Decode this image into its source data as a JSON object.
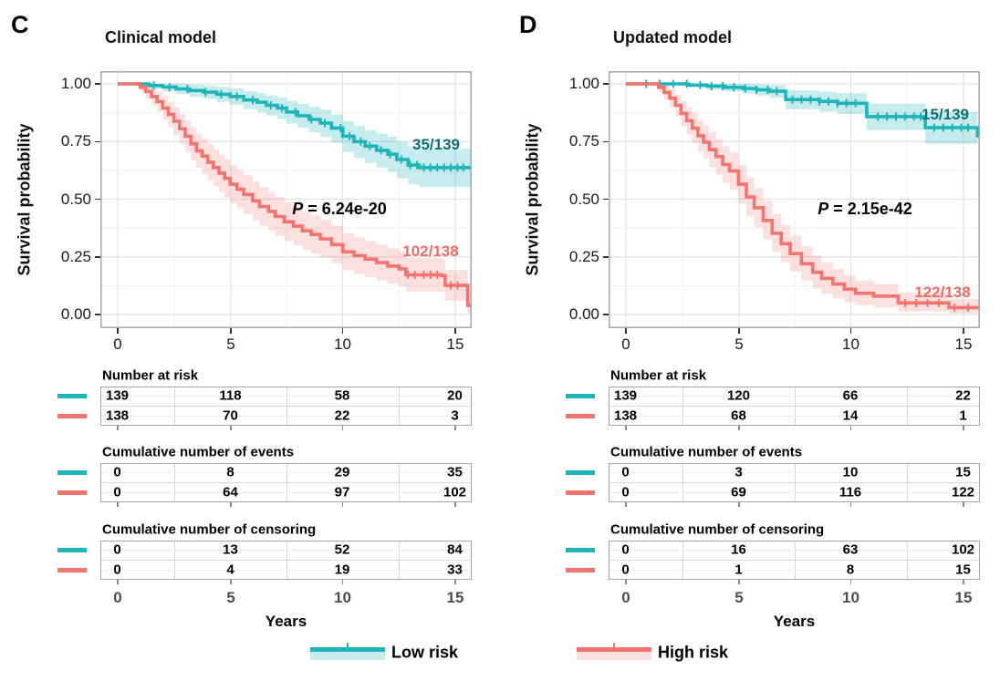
{
  "colors": {
    "low": "#1FB4B8",
    "low_fill": "rgba(31,180,184,0.25)",
    "low_text": "#0B6F75",
    "high": "#F3736E",
    "high_fill": "rgba(243,115,110,0.22)",
    "high_text": "#EF6A64",
    "grid_major": "#e2e2e2",
    "grid_minor": "#efefef",
    "panel_border": "#a6a6a6",
    "axis_text": "#1a1a1a",
    "table_axis_text": "#4d4d4d"
  },
  "axis": {
    "ylabel": "Survival probability",
    "y_ticks": [
      "1.00",
      "0.75",
      "0.50",
      "0.25",
      "0.00"
    ],
    "x_ticks": [
      "0",
      "5",
      "10",
      "15"
    ],
    "xlabel": "Years",
    "x_range": [
      0,
      15
    ],
    "y_range": [
      0.0,
      1.0
    ],
    "grid": "on"
  },
  "legend": [
    {
      "key": "low",
      "label": "Low risk"
    },
    {
      "key": "high",
      "label": "High risk"
    }
  ],
  "chart_data": {
    "type": "line",
    "subtype": "kaplan-meier-survival",
    "panels": [
      {
        "letter": "C",
        "title": "Clinical model",
        "pvalue": "P = 6.24e-20",
        "series": [
          {
            "key": "low",
            "name": "Low risk",
            "annotation": "35/139",
            "steps": [
              [
                0,
                1,
                1,
                1
              ],
              [
                1.1,
                1,
                1,
                1
              ],
              [
                1.4,
                0.993,
                0.98,
                1
              ],
              [
                2,
                0.986,
                0.966,
                1
              ],
              [
                2.6,
                0.978,
                0.955,
                1
              ],
              [
                3.2,
                0.971,
                0.944,
                0.997
              ],
              [
                3.8,
                0.964,
                0.934,
                0.993
              ],
              [
                4.4,
                0.955,
                0.922,
                0.987
              ],
              [
                5,
                0.945,
                0.908,
                0.98
              ],
              [
                5.6,
                0.93,
                0.89,
                0.968
              ],
              [
                6.2,
                0.92,
                0.877,
                0.96
              ],
              [
                6.6,
                0.907,
                0.862,
                0.95
              ],
              [
                7.1,
                0.895,
                0.848,
                0.94
              ],
              [
                7.5,
                0.878,
                0.828,
                0.927
              ],
              [
                8,
                0.862,
                0.81,
                0.914
              ],
              [
                8.5,
                0.846,
                0.79,
                0.9
              ],
              [
                9,
                0.83,
                0.77,
                0.888
              ],
              [
                9.5,
                0.808,
                0.745,
                0.868
              ],
              [
                10,
                0.773,
                0.705,
                0.838
              ],
              [
                10.5,
                0.75,
                0.68,
                0.818
              ],
              [
                11,
                0.73,
                0.657,
                0.8
              ],
              [
                11.5,
                0.712,
                0.637,
                0.784
              ],
              [
                12,
                0.695,
                0.618,
                0.77
              ],
              [
                12.4,
                0.672,
                0.592,
                0.75
              ],
              [
                12.9,
                0.648,
                0.565,
                0.728
              ],
              [
                13.4,
                0.637,
                0.552,
                0.718
              ],
              [
                15.68,
                0.637,
                0.552,
                0.718
              ]
            ],
            "censors": [
              1.6,
              2.3,
              3.1,
              3.9,
              4.6,
              5.3,
              6.0,
              6.8,
              7.3,
              7.9,
              8.6,
              9.2,
              9.9,
              10.3,
              10.8,
              11.2,
              11.7,
              12.1,
              12.6,
              13.0,
              13.3,
              13.6,
              13.9,
              14.2,
              14.5,
              14.8,
              15.1,
              15.35
            ]
          },
          {
            "key": "high",
            "name": "High risk",
            "annotation": "102/138",
            "steps": [
              [
                0,
                1,
                1,
                1
              ],
              [
                0.8,
                1,
                1,
                1
              ],
              [
                1,
                0.985,
                0.965,
                1
              ],
              [
                1.25,
                0.967,
                0.937,
                0.997
              ],
              [
                1.5,
                0.945,
                0.907,
                0.983
              ],
              [
                1.75,
                0.923,
                0.88,
                0.966
              ],
              [
                2,
                0.895,
                0.845,
                0.947
              ],
              [
                2.25,
                0.867,
                0.812,
                0.922
              ],
              [
                2.5,
                0.838,
                0.778,
                0.898
              ],
              [
                2.75,
                0.805,
                0.74,
                0.87
              ],
              [
                3,
                0.773,
                0.705,
                0.841
              ],
              [
                3.25,
                0.74,
                0.668,
                0.812
              ],
              [
                3.5,
                0.71,
                0.635,
                0.785
              ],
              [
                3.75,
                0.687,
                0.61,
                0.764
              ],
              [
                4,
                0.66,
                0.582,
                0.738
              ],
              [
                4.25,
                0.637,
                0.557,
                0.717
              ],
              [
                4.5,
                0.613,
                0.532,
                0.694
              ],
              [
                4.75,
                0.59,
                0.508,
                0.672
              ],
              [
                5,
                0.565,
                0.482,
                0.648
              ],
              [
                5.3,
                0.543,
                0.46,
                0.626
              ],
              [
                5.6,
                0.52,
                0.437,
                0.603
              ],
              [
                6,
                0.492,
                0.408,
                0.576
              ],
              [
                6.3,
                0.468,
                0.384,
                0.552
              ],
              [
                6.7,
                0.447,
                0.363,
                0.531
              ],
              [
                7,
                0.425,
                0.341,
                0.509
              ],
              [
                7.4,
                0.402,
                0.318,
                0.486
              ],
              [
                7.8,
                0.383,
                0.3,
                0.466
              ],
              [
                8.2,
                0.363,
                0.28,
                0.446
              ],
              [
                8.6,
                0.347,
                0.264,
                0.43
              ],
              [
                9,
                0.328,
                0.246,
                0.41
              ],
              [
                9.5,
                0.303,
                0.222,
                0.384
              ],
              [
                10,
                0.272,
                0.192,
                0.352
              ],
              [
                10.5,
                0.255,
                0.176,
                0.334
              ],
              [
                11,
                0.24,
                0.162,
                0.318
              ],
              [
                11.5,
                0.225,
                0.148,
                0.302
              ],
              [
                12,
                0.21,
                0.134,
                0.286
              ],
              [
                12.5,
                0.198,
                0.123,
                0.273
              ],
              [
                12.8,
                0.172,
                0.1,
                0.244
              ],
              [
                14.4,
                0.168,
                0.097,
                0.239
              ],
              [
                14.55,
                0.126,
                0.06,
                0.192
              ],
              [
                15.4,
                0.126,
                0.06,
                0.192
              ],
              [
                15.55,
                0.04,
                0.004,
                0.12
              ],
              [
                15.68,
                0.04,
                0.004,
                0.12
              ]
            ],
            "censors": [
              12.9,
              13.2,
              13.6,
              13.9,
              14.2,
              14.8,
              15.1
            ]
          }
        ],
        "tables": [
          {
            "title": "Number at risk",
            "rows": [
              [
                "139",
                "118",
                "58",
                "20"
              ],
              [
                "138",
                "70",
                "22",
                "3"
              ]
            ]
          },
          {
            "title": "Cumulative number of events",
            "rows": [
              [
                "0",
                "8",
                "29",
                "35"
              ],
              [
                "0",
                "64",
                "97",
                "102"
              ]
            ]
          },
          {
            "title": "Cumulative number of censoring",
            "rows": [
              [
                "0",
                "13",
                "52",
                "84"
              ],
              [
                "0",
                "4",
                "19",
                "33"
              ]
            ]
          }
        ]
      },
      {
        "letter": "D",
        "title": "Updated model",
        "pvalue": "P = 2.15e-42",
        "series": [
          {
            "key": "low",
            "name": "Low risk",
            "annotation": "15/139",
            "steps": [
              [
                0,
                1,
                1,
                1
              ],
              [
                2.4,
                1,
                1,
                1
              ],
              [
                2.8,
                0.995,
                0.985,
                1
              ],
              [
                3.6,
                0.99,
                0.975,
                1
              ],
              [
                4.4,
                0.985,
                0.967,
                1
              ],
              [
                5.2,
                0.98,
                0.958,
                1
              ],
              [
                5.8,
                0.974,
                0.95,
                0.997
              ],
              [
                6.4,
                0.968,
                0.94,
                0.994
              ],
              [
                7.1,
                0.932,
                0.89,
                0.972
              ],
              [
                8.6,
                0.924,
                0.88,
                0.966
              ],
              [
                9.4,
                0.916,
                0.87,
                0.96
              ],
              [
                10.7,
                0.858,
                0.8,
                0.914
              ],
              [
                13.3,
                0.81,
                0.74,
                0.878
              ],
              [
                15.5,
                0.81,
                0.74,
                0.878
              ],
              [
                15.62,
                0.768,
                0.688,
                0.85
              ]
            ],
            "censors": [
              0.9,
              1.5,
              2.1,
              2.7,
              3.3,
              3.8,
              4.3,
              4.8,
              5.3,
              5.8,
              6.3,
              6.7,
              7.4,
              7.8,
              8.2,
              8.6,
              9.0,
              9.4,
              9.8,
              10.2,
              11.2,
              11.6,
              12.0,
              12.4,
              12.8,
              13.1,
              13.7,
              14.1,
              14.5,
              14.9,
              15.2
            ]
          },
          {
            "key": "high",
            "name": "High risk",
            "annotation": "122/138",
            "steps": [
              [
                0,
                1,
                1,
                1
              ],
              [
                1.25,
                1,
                1,
                1
              ],
              [
                1.45,
                0.985,
                0.965,
                1
              ],
              [
                1.7,
                0.963,
                0.932,
                0.993
              ],
              [
                1.95,
                0.938,
                0.898,
                0.977
              ],
              [
                2.2,
                0.907,
                0.86,
                0.953
              ],
              [
                2.45,
                0.872,
                0.817,
                0.925
              ],
              [
                2.7,
                0.84,
                0.78,
                0.9
              ],
              [
                2.95,
                0.808,
                0.743,
                0.872
              ],
              [
                3.2,
                0.775,
                0.706,
                0.843
              ],
              [
                3.45,
                0.747,
                0.675,
                0.818
              ],
              [
                3.7,
                0.715,
                0.64,
                0.79
              ],
              [
                4,
                0.685,
                0.608,
                0.762
              ],
              [
                4.3,
                0.65,
                0.57,
                0.73
              ],
              [
                4.6,
                0.622,
                0.54,
                0.703
              ],
              [
                5,
                0.565,
                0.482,
                0.648
              ],
              [
                5.35,
                0.51,
                0.425,
                0.594
              ],
              [
                5.7,
                0.463,
                0.378,
                0.548
              ],
              [
                6.1,
                0.408,
                0.324,
                0.492
              ],
              [
                6.5,
                0.352,
                0.27,
                0.435
              ],
              [
                6.9,
                0.307,
                0.227,
                0.388
              ],
              [
                7.3,
                0.264,
                0.187,
                0.342
              ],
              [
                7.8,
                0.22,
                0.147,
                0.295
              ],
              [
                8.3,
                0.183,
                0.113,
                0.255
              ],
              [
                8.7,
                0.157,
                0.09,
                0.226
              ],
              [
                9.2,
                0.132,
                0.07,
                0.197
              ],
              [
                9.7,
                0.11,
                0.053,
                0.17
              ],
              [
                10.2,
                0.092,
                0.04,
                0.148
              ],
              [
                11,
                0.08,
                0.032,
                0.132
              ],
              [
                12.1,
                0.05,
                0.013,
                0.096
              ],
              [
                14.35,
                0.03,
                0.005,
                0.068
              ],
              [
                15.68,
                0.03,
                0.005,
                0.068
              ]
            ],
            "censors": [
              12.4,
              12.9,
              13.4,
              13.9,
              14.6,
              15.2
            ]
          }
        ],
        "tables": [
          {
            "title": "Number at risk",
            "rows": [
              [
                "139",
                "120",
                "66",
                "22"
              ],
              [
                "138",
                "68",
                "14",
                "1"
              ]
            ]
          },
          {
            "title": "Cumulative number of events",
            "rows": [
              [
                "0",
                "3",
                "10",
                "15"
              ],
              [
                "0",
                "69",
                "116",
                "122"
              ]
            ]
          },
          {
            "title": "Cumulative number of censoring",
            "rows": [
              [
                "0",
                "16",
                "63",
                "102"
              ],
              [
                "0",
                "1",
                "8",
                "15"
              ]
            ]
          }
        ]
      }
    ]
  }
}
